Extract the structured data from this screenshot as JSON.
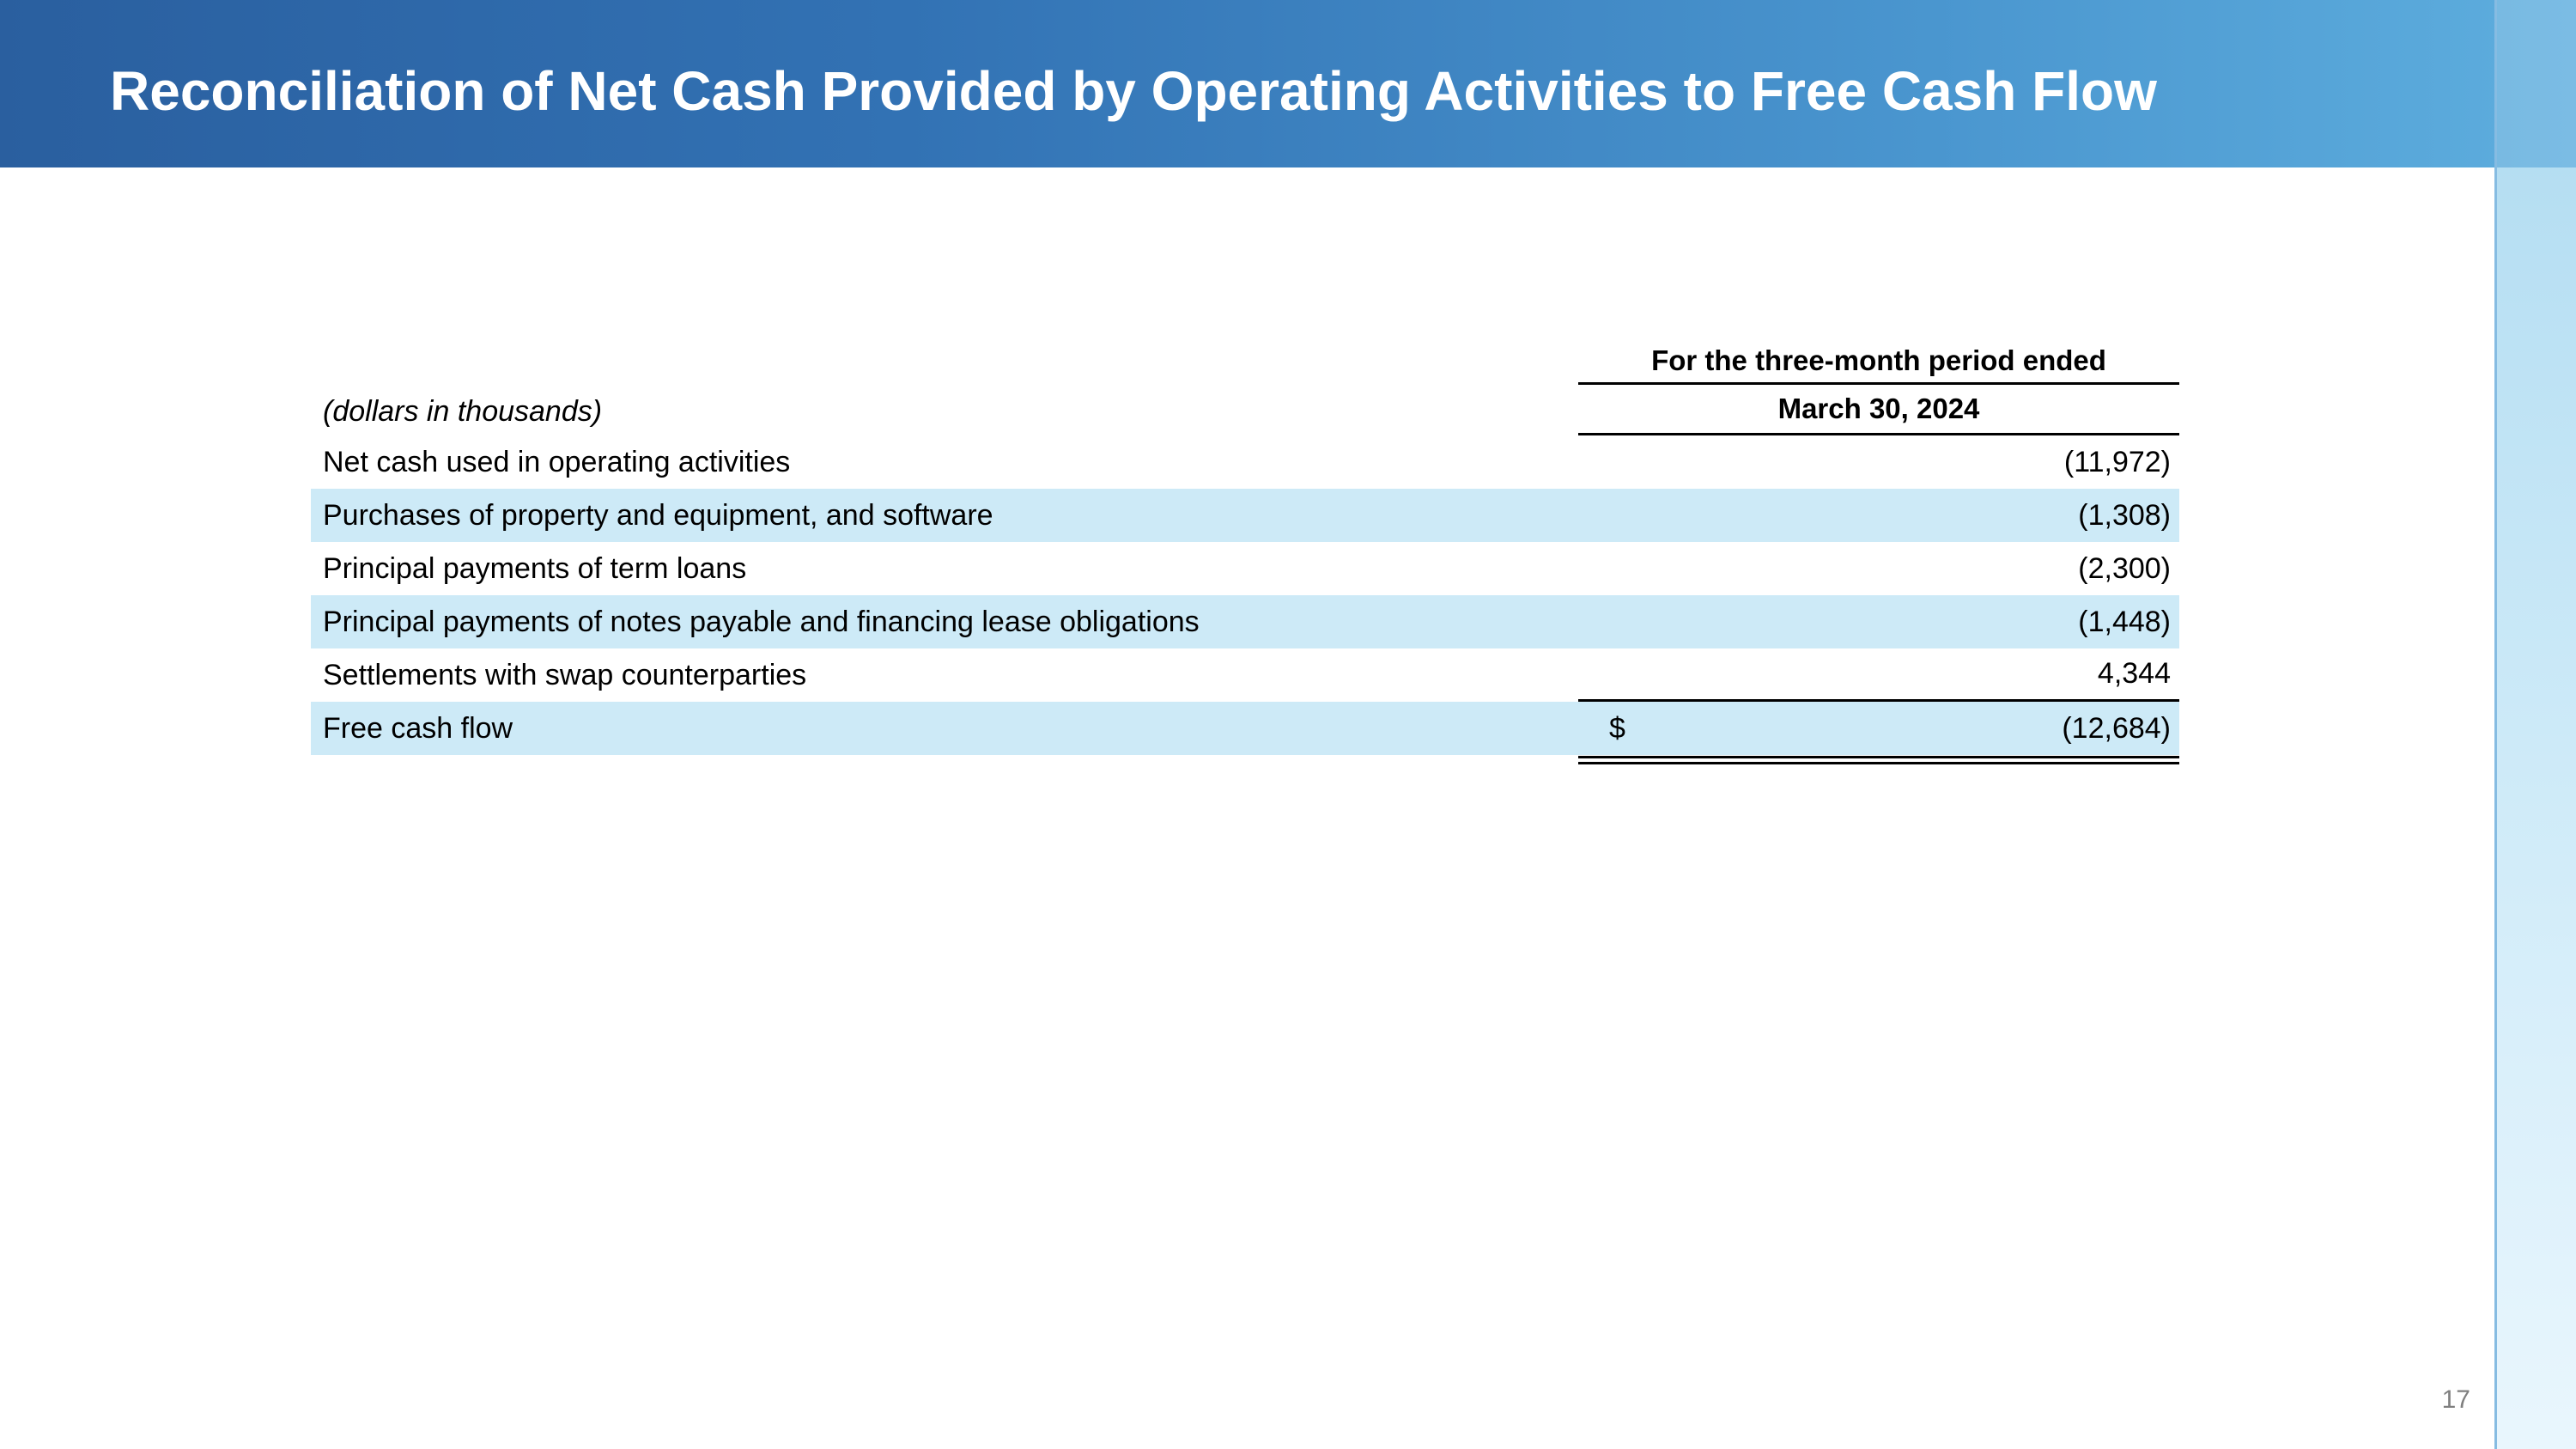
{
  "slide": {
    "title": "Reconciliation of Net Cash Provided by Operating Activities to Free Cash Flow",
    "page_number": "17"
  },
  "colors": {
    "header_gradient_start": "#2a5f9f",
    "header_gradient_end": "#5eaede",
    "row_highlight": "#cdeaf7",
    "strip_top": "#b5def2",
    "strip_bottom": "#e9f6fd",
    "rule_color": "#000000",
    "page_number_color": "#7f7f7f"
  },
  "table": {
    "units_note": "(dollars in thousands)",
    "period_header": "For the three-month period ended",
    "date_header": "March 30, 2024",
    "rows": [
      {
        "label": "Net cash used in operating activities",
        "currency": "",
        "value": "(11,972)",
        "highlight": false
      },
      {
        "label": "Purchases of property and equipment, and software",
        "currency": "",
        "value": "(1,308)",
        "highlight": true
      },
      {
        "label": "Principal payments of term loans",
        "currency": "",
        "value": "(2,300)",
        "highlight": false
      },
      {
        "label": "Principal payments of notes payable and financing lease obligations",
        "currency": "",
        "value": "(1,448)",
        "highlight": true
      },
      {
        "label": "Settlements with swap counterparties",
        "currency": "",
        "value": "4,344",
        "highlight": false
      },
      {
        "label": "Free cash flow",
        "currency": "$",
        "value": "(12,684)",
        "highlight": true
      }
    ]
  }
}
